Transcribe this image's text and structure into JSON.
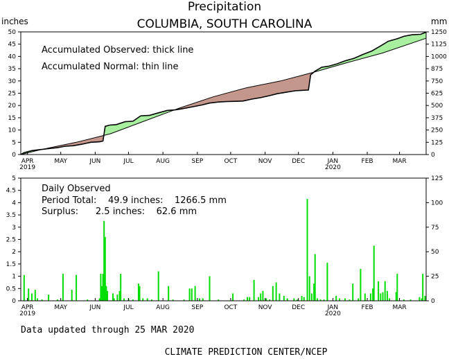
{
  "header": {
    "title": "Precipitation",
    "subtitle": "COLUMBIA, SOUTH CAROLINA",
    "left_unit": "inches",
    "right_unit": "mm"
  },
  "top_panel": {
    "legend_observed": "Accumulated Observed: thick line",
    "legend_normal": "Accumulated Normal: thin line"
  },
  "bottom_panel": {
    "stats_title": "Daily Observed",
    "period_total": "Period Total:    49.9 inches:    1266.5 mm",
    "surplus": "Surplus:      2.5 inches:    62.6 mm"
  },
  "footer": {
    "updated": "Data updated through 25 MAR 2020",
    "credit": "CLIMATE PREDICTION CENTER/NCEP"
  },
  "colors": {
    "surplus_fill": "#a8f0a0",
    "deficit_fill": "#c4968c",
    "daily_bar": "#00dd00",
    "axis": "#000000"
  },
  "chart_data": [
    {
      "type": "area",
      "x_range": [
        "2019-03-26",
        "2020-03-25"
      ],
      "ylim": [
        0,
        50
      ],
      "ylim_right_mm": [
        0,
        1250
      ],
      "y_ticks": [
        0,
        5,
        10,
        15,
        20,
        25,
        30,
        35,
        40,
        45,
        50
      ],
      "y_ticks_right": [
        0,
        125,
        250,
        375,
        500,
        625,
        750,
        875,
        1000,
        1125,
        1250
      ],
      "x_ticks": [
        "APR",
        "MAY",
        "JUN",
        "JUL",
        "AUG",
        "SEP",
        "OCT",
        "NOV",
        "DEC",
        "JAN",
        "FEB",
        "MAR"
      ],
      "x_tick_years": [
        "2019",
        "2020"
      ],
      "series": [
        {
          "name": "Accumulated Observed",
          "points": [
            [
              "2019-03-26",
              0
            ],
            [
              "2019-03-29",
              0.8
            ],
            [
              "2019-04-05",
              1.6
            ],
            [
              "2019-04-12",
              2.0
            ],
            [
              "2019-04-20",
              2.4
            ],
            [
              "2019-04-28",
              2.8
            ],
            [
              "2019-05-05",
              3.4
            ],
            [
              "2019-05-12",
              3.6
            ],
            [
              "2019-05-20",
              4.2
            ],
            [
              "2019-05-28",
              5.0
            ],
            [
              "2019-06-05",
              5.2
            ],
            [
              "2019-06-08",
              5.5
            ],
            [
              "2019-06-10",
              11.5
            ],
            [
              "2019-06-14",
              12.0
            ],
            [
              "2019-06-20",
              12.2
            ],
            [
              "2019-06-28",
              13.4
            ],
            [
              "2019-07-05",
              13.6
            ],
            [
              "2019-07-12",
              15.8
            ],
            [
              "2019-07-20",
              16.0
            ],
            [
              "2019-07-28",
              17.0
            ],
            [
              "2019-08-05",
              18.0
            ],
            [
              "2019-08-12",
              18.2
            ],
            [
              "2019-08-20",
              18.8
            ],
            [
              "2019-08-28",
              19.5
            ],
            [
              "2019-09-05",
              20.2
            ],
            [
              "2019-09-12",
              21.0
            ],
            [
              "2019-09-20",
              21.4
            ],
            [
              "2019-09-28",
              21.6
            ],
            [
              "2019-10-05",
              21.7
            ],
            [
              "2019-10-12",
              21.8
            ],
            [
              "2019-10-20",
              22.6
            ],
            [
              "2019-10-28",
              23.2
            ],
            [
              "2019-11-05",
              24.0
            ],
            [
              "2019-11-12",
              24.8
            ],
            [
              "2019-11-20",
              25.4
            ],
            [
              "2019-11-28",
              26.0
            ],
            [
              "2019-12-05",
              26.2
            ],
            [
              "2019-12-10",
              26.3
            ],
            [
              "2019-12-12",
              32.5
            ],
            [
              "2019-12-16",
              34.0
            ],
            [
              "2019-12-22",
              35.6
            ],
            [
              "2019-12-28",
              36.0
            ],
            [
              "2020-01-05",
              37.0
            ],
            [
              "2020-01-12",
              38.2
            ],
            [
              "2020-01-20",
              39.2
            ],
            [
              "2020-01-28",
              40.8
            ],
            [
              "2020-02-05",
              42.2
            ],
            [
              "2020-02-12",
              44.0
            ],
            [
              "2020-02-20",
              46.2
            ],
            [
              "2020-02-28",
              47.2
            ],
            [
              "2020-03-05",
              48.2
            ],
            [
              "2020-03-12",
              48.8
            ],
            [
              "2020-03-20",
              49.0
            ],
            [
              "2020-03-25",
              49.9
            ]
          ]
        },
        {
          "name": "Accumulated Normal",
          "points": [
            [
              "2019-03-26",
              0
            ],
            [
              "2019-04-15",
              2.2
            ],
            [
              "2019-05-15",
              5.0
            ],
            [
              "2019-06-15",
              8.5
            ],
            [
              "2019-07-15",
              13.6
            ],
            [
              "2019-08-15",
              18.8
            ],
            [
              "2019-09-15",
              23.5
            ],
            [
              "2019-10-15",
              27.2
            ],
            [
              "2019-11-15",
              30.0
            ],
            [
              "2019-12-15",
              33.6
            ],
            [
              "2020-01-15",
              37.6
            ],
            [
              "2020-02-15",
              41.4
            ],
            [
              "2020-03-25",
              47.4
            ]
          ]
        }
      ]
    },
    {
      "type": "bar",
      "ylim": [
        0,
        5
      ],
      "ylim_right_mm": [
        0,
        125
      ],
      "y_ticks": [
        0,
        0.5,
        1,
        1.5,
        2,
        2.5,
        3,
        3.5,
        4,
        4.5,
        5
      ],
      "y_ticks_right": [
        0,
        25,
        50,
        75,
        100,
        125
      ],
      "x_ticks": [
        "APR",
        "MAY",
        "JUN",
        "JUL",
        "AUG",
        "SEP",
        "OCT",
        "NOV",
        "DEC",
        "JAN",
        "FEB",
        "MAR"
      ],
      "x_tick_years": [
        "2019",
        "2020"
      ],
      "series": [
        {
          "name": "Daily Observed",
          "points": [
            [
              "2019-03-29",
              1.05
            ],
            [
              "2019-04-02",
              0.5
            ],
            [
              "2019-04-05",
              0.3
            ],
            [
              "2019-04-08",
              0.45
            ],
            [
              "2019-04-10",
              0.1
            ],
            [
              "2019-04-14",
              0.05
            ],
            [
              "2019-04-20",
              0.25
            ],
            [
              "2019-04-28",
              0.05
            ],
            [
              "2019-05-03",
              1.1
            ],
            [
              "2019-05-11",
              0.45
            ],
            [
              "2019-05-15",
              1.05
            ],
            [
              "2019-05-25",
              0.05
            ],
            [
              "2019-06-05",
              0.1
            ],
            [
              "2019-06-06",
              1.1
            ],
            [
              "2019-06-07",
              0.6
            ],
            [
              "2019-06-08",
              1.1
            ],
            [
              "2019-06-09",
              3.25
            ],
            [
              "2019-06-10",
              2.6
            ],
            [
              "2019-06-11",
              0.6
            ],
            [
              "2019-06-12",
              0.4
            ],
            [
              "2019-06-17",
              0.3
            ],
            [
              "2019-06-18",
              0.1
            ],
            [
              "2019-06-21",
              0.25
            ],
            [
              "2019-06-23",
              0.4
            ],
            [
              "2019-06-24",
              1.1
            ],
            [
              "2019-06-27",
              0.1
            ],
            [
              "2019-07-01",
              0.1
            ],
            [
              "2019-07-05",
              0.05
            ],
            [
              "2019-07-10",
              0.7
            ],
            [
              "2019-07-11",
              0.6
            ],
            [
              "2019-07-14",
              0.1
            ],
            [
              "2019-07-18",
              0.1
            ],
            [
              "2019-07-22",
              0.05
            ],
            [
              "2019-07-28",
              1.2
            ],
            [
              "2019-08-06",
              0.6
            ],
            [
              "2019-08-10",
              0.05
            ],
            [
              "2019-08-20",
              0.05
            ],
            [
              "2019-08-25",
              0.5
            ],
            [
              "2019-08-27",
              0.5
            ],
            [
              "2019-08-30",
              0.6
            ],
            [
              "2019-09-03",
              0.1
            ],
            [
              "2019-09-06",
              0.1
            ],
            [
              "2019-09-12",
              1.0
            ],
            [
              "2019-09-20",
              0.05
            ],
            [
              "2019-10-03",
              0.3
            ],
            [
              "2019-10-13",
              0.05
            ],
            [
              "2019-10-16",
              0.15
            ],
            [
              "2019-10-18",
              0.15
            ],
            [
              "2019-10-22",
              0.85
            ],
            [
              "2019-10-26",
              0.15
            ],
            [
              "2019-10-28",
              0.3
            ],
            [
              "2019-10-30",
              0.4
            ],
            [
              "2019-11-02",
              0.1
            ],
            [
              "2019-11-05",
              0.05
            ],
            [
              "2019-11-08",
              0.6
            ],
            [
              "2019-11-11",
              0.75
            ],
            [
              "2019-11-14",
              0.3
            ],
            [
              "2019-11-18",
              0.2
            ],
            [
              "2019-11-21",
              0.1
            ],
            [
              "2019-11-27",
              0.1
            ],
            [
              "2019-11-30",
              0.05
            ],
            [
              "2019-12-04",
              0.2
            ],
            [
              "2019-12-06",
              0.15
            ],
            [
              "2019-12-09",
              4.15
            ],
            [
              "2019-12-11",
              1.0
            ],
            [
              "2019-12-13",
              0.3
            ],
            [
              "2019-12-15",
              0.7
            ],
            [
              "2019-12-16",
              1.9
            ],
            [
              "2019-12-18",
              0.1
            ],
            [
              "2019-12-21",
              0.05
            ],
            [
              "2019-12-24",
              0.05
            ],
            [
              "2019-12-27",
              1.55
            ],
            [
              "2020-01-04",
              0.2
            ],
            [
              "2020-01-07",
              0.1
            ],
            [
              "2020-01-12",
              0.1
            ],
            [
              "2020-01-16",
              0.05
            ],
            [
              "2020-01-19",
              0.7
            ],
            [
              "2020-01-24",
              0.1
            ],
            [
              "2020-01-26",
              1.3
            ],
            [
              "2020-01-30",
              0.3
            ],
            [
              "2020-02-04",
              0.3
            ],
            [
              "2020-02-06",
              0.5
            ],
            [
              "2020-02-07",
              2.25
            ],
            [
              "2020-02-11",
              0.8
            ],
            [
              "2020-02-13",
              0.3
            ],
            [
              "2020-02-15",
              0.35
            ],
            [
              "2020-02-17",
              0.8
            ],
            [
              "2020-02-19",
              0.4
            ],
            [
              "2020-02-21",
              0.1
            ],
            [
              "2020-02-27",
              0.35
            ],
            [
              "2020-02-28",
              1.1
            ],
            [
              "2020-03-05",
              0.05
            ],
            [
              "2020-03-11",
              0.05
            ],
            [
              "2020-03-19",
              0.15
            ],
            [
              "2020-03-21",
              0.1
            ],
            [
              "2020-03-22",
              1.1
            ],
            [
              "2020-03-24",
              0.2
            ]
          ]
        }
      ]
    }
  ]
}
